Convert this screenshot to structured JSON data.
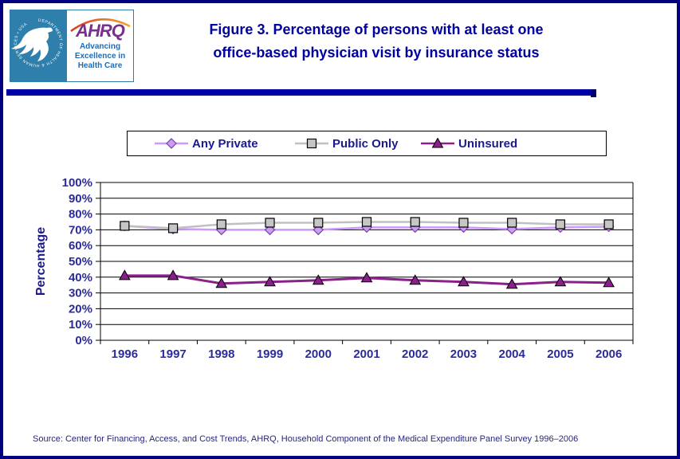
{
  "header": {
    "hhs_ring_text": "DEPARTMENT OF HEALTH & HUMAN SERVICES • USA",
    "ahrq_acronym": "AHRQ",
    "ahrq_tagline": [
      "Advancing",
      "Excellence in",
      "Health Care"
    ],
    "title_line1": "Figure 3. Percentage of persons with at least one",
    "title_line2": "office-based physician visit by insurance status"
  },
  "chart_data": {
    "type": "line",
    "title": "Figure 3. Percentage of persons with at least one office-based physician visit by insurance status",
    "ylabel": "Percentage",
    "xlabel": "",
    "ylim": [
      0,
      100
    ],
    "y_tick_step": 10,
    "y_ticks": [
      "0%",
      "10%",
      "20%",
      "30%",
      "40%",
      "50%",
      "60%",
      "70%",
      "80%",
      "90%",
      "100%"
    ],
    "grid": "horizontal",
    "legend_position": "top",
    "categories": [
      "1996",
      "1997",
      "1998",
      "1999",
      "2000",
      "2001",
      "2002",
      "2003",
      "2004",
      "2005",
      "2006"
    ],
    "series": [
      {
        "name": "Any Private",
        "marker": "diamond",
        "color": "#CC99FF",
        "marker_fill": "#C9A0F0",
        "marker_stroke": "#7B3FA8",
        "values": [
          72.5,
          70.5,
          70,
          70,
          70,
          71.5,
          71.5,
          71.5,
          70.5,
          71.5,
          72
        ]
      },
      {
        "name": "Public Only",
        "marker": "square",
        "color": "#C0C0C0",
        "marker_fill": "#C6C6C6",
        "marker_stroke": "#000000",
        "values": [
          72.5,
          71,
          73.5,
          74.5,
          74.5,
          75,
          75,
          74.5,
          74.5,
          73.5,
          73.5
        ]
      },
      {
        "name": "Uninsured",
        "marker": "triangle",
        "color": "#8B1F8B",
        "marker_fill": "#8B1F8B",
        "marker_stroke": "#000000",
        "values": [
          41,
          41,
          36,
          37,
          38,
          39.5,
          38,
          37,
          35.5,
          37,
          36.5
        ]
      }
    ]
  },
  "footer": {
    "source": "Source: Center for Financing, Access, and Cost Trends, AHRQ, Household Component of the Medical Expenditure Panel Survey 1996–2006"
  },
  "colors": {
    "page_border": "#000080",
    "divider_bar": "#0000A8",
    "title_text": "#0000A0",
    "axis_text": "#2B2B99",
    "legend_text": "#1A1A8C",
    "source_text": "#26267E",
    "gridline": "#000000",
    "hhs_teal": "#2E7FAC",
    "ahrq_purple": "#7A2E8F",
    "ahrq_blue": "#1E6CB5",
    "arc_orange_start": "#D93A26",
    "arc_orange_end": "#F5A623"
  }
}
